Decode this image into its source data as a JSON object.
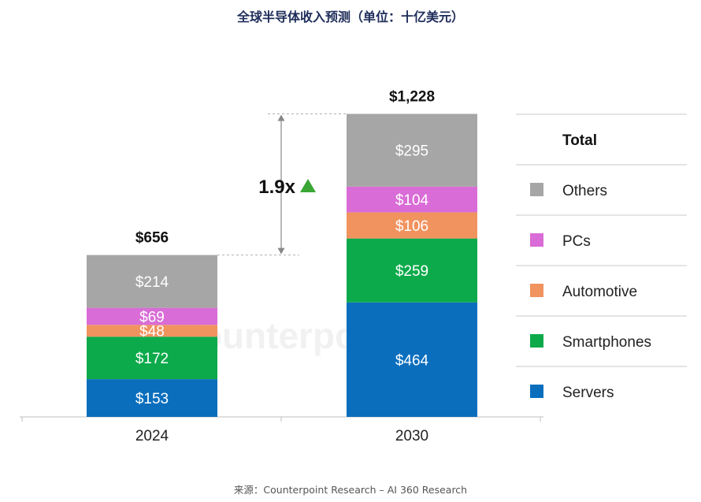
{
  "title": "全球半导体收入预测（单位：十亿美元）",
  "source": "来源：Counterpoint Research – AI 360 Research",
  "watermark": "Counterpoint",
  "chart_data": {
    "type": "bar",
    "stacked": true,
    "categories": [
      "2024",
      "2030"
    ],
    "series": [
      {
        "name": "Servers",
        "color": "#0a6ebd",
        "values": [
          153,
          464
        ],
        "labels": [
          "$153",
          "$464"
        ]
      },
      {
        "name": "Smartphones",
        "color": "#0daa4b",
        "values": [
          172,
          259
        ],
        "labels": [
          "$172",
          "$259"
        ]
      },
      {
        "name": "Automotive",
        "color": "#f0935f",
        "values": [
          48,
          106
        ],
        "labels": [
          "$48",
          "$106"
        ]
      },
      {
        "name": "PCs",
        "color": "#d96cd6",
        "values": [
          69,
          104
        ],
        "labels": [
          "$69",
          "$104"
        ]
      },
      {
        "name": "Others",
        "color": "#a6a6a6",
        "values": [
          214,
          295
        ],
        "labels": [
          "$214",
          "$295"
        ]
      }
    ],
    "totals": [
      656,
      1228
    ],
    "total_labels": [
      "$656",
      "$1,228"
    ],
    "growth_label": "1.9x",
    "growth_color": "#3aa635",
    "legend_title": "Total",
    "legend_order": [
      "Others",
      "PCs",
      "Automotive",
      "Smartphones",
      "Servers"
    ],
    "legend_position": "right",
    "ylim": [
      0,
      1228
    ],
    "grid": false
  }
}
